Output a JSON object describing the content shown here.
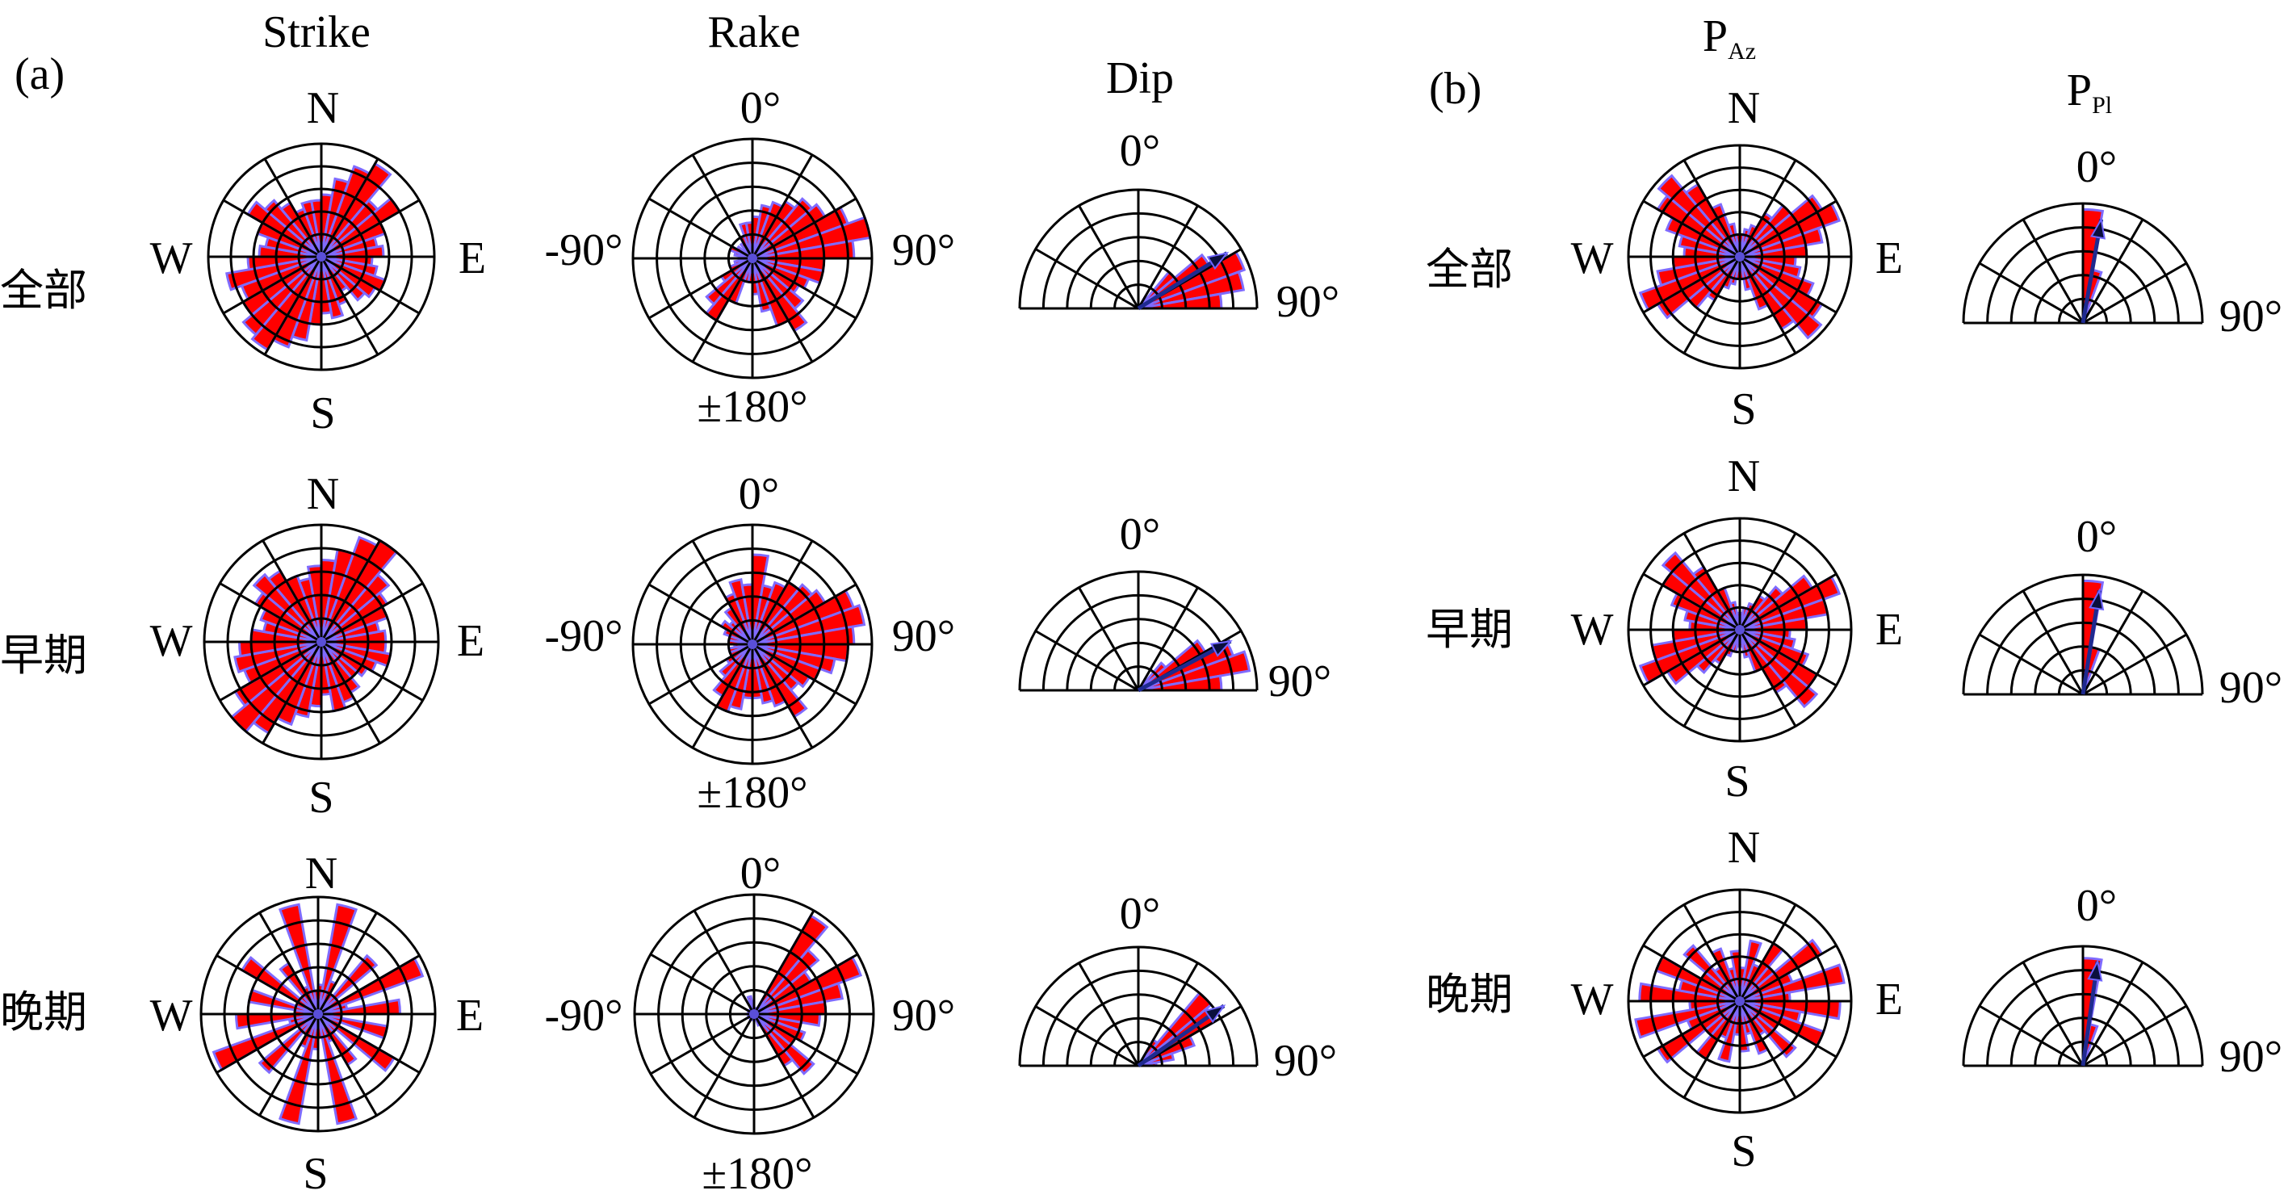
{
  "panel_labels": [
    "(a)",
    "(b)"
  ],
  "column_titles": {
    "strike": "Strike",
    "rake": "Rake",
    "dip": "Dip",
    "paz": {
      "main": "P",
      "sub": "Az"
    },
    "ppl": {
      "main": "P",
      "sub": "Pl"
    }
  },
  "row_labels": [
    "全部",
    "早期",
    "晚期"
  ],
  "axis_labels": {
    "compass": {
      "n": "N",
      "e": "E",
      "s": "S",
      "w": "W"
    },
    "rake": {
      "top": "0°",
      "left": "-90°",
      "right": "90°",
      "bottom": "±180°"
    },
    "dip": {
      "top": "0°",
      "right": "90°"
    },
    "ppl": {
      "top": "0°",
      "right": "90°"
    }
  },
  "colors": {
    "bar": "#ff0000",
    "bar_edge": "#7f6bff",
    "arrow": "#1f2a8f",
    "grid": "#000000"
  },
  "chart_data": [
    {
      "type": "rose",
      "panel": "a",
      "variable": "Strike",
      "period": "全部",
      "bin_width_deg": 10,
      "radial_max": 1,
      "directions": [
        0,
        10,
        20,
        30,
        40,
        50,
        60,
        70,
        80,
        90,
        100,
        110,
        120,
        130,
        140,
        150,
        160,
        170,
        180,
        190,
        200,
        210,
        220,
        230,
        240,
        250,
        260,
        270,
        280,
        290,
        300,
        310,
        320,
        330,
        340,
        350
      ],
      "values": [
        0.55,
        0.7,
        0.85,
        0.95,
        0.65,
        0.8,
        0.6,
        0.5,
        0.55,
        0.45,
        0.5,
        0.6,
        0.55,
        0.5,
        0.35,
        0.45,
        0.55,
        0.5,
        0.6,
        0.75,
        0.85,
        0.95,
        0.9,
        0.8,
        0.75,
        0.85,
        0.65,
        0.55,
        0.5,
        0.6,
        0.75,
        0.65,
        0.55,
        0.45,
        0.5,
        0.5
      ]
    },
    {
      "type": "rose",
      "panel": "a",
      "variable": "Strike",
      "period": "早期",
      "bin_width_deg": 10,
      "radial_max": 1,
      "directions": [
        0,
        10,
        20,
        30,
        40,
        50,
        60,
        70,
        80,
        90,
        100,
        110,
        120,
        130,
        140,
        150,
        160,
        170,
        180,
        190,
        200,
        210,
        220,
        230,
        240,
        250,
        260,
        270,
        280,
        290,
        300,
        310,
        320,
        330,
        340,
        350
      ],
      "values": [
        0.7,
        0.8,
        0.95,
        1.0,
        0.75,
        0.65,
        0.6,
        0.5,
        0.55,
        0.55,
        0.6,
        0.5,
        0.45,
        0.4,
        0.5,
        0.55,
        0.6,
        0.45,
        0.55,
        0.65,
        0.75,
        0.9,
        1.0,
        0.85,
        0.7,
        0.75,
        0.7,
        0.6,
        0.5,
        0.55,
        0.65,
        0.75,
        0.7,
        0.6,
        0.55,
        0.65
      ]
    },
    {
      "type": "rose",
      "panel": "a",
      "variable": "Strike",
      "period": "晚期",
      "bin_width_deg": 10,
      "radial_max": 1,
      "directions": [
        0,
        10,
        20,
        30,
        40,
        50,
        60,
        70,
        80,
        90,
        100,
        110,
        120,
        130,
        140,
        150,
        160,
        170,
        180,
        190,
        200,
        210,
        220,
        230,
        240,
        250,
        260,
        270,
        280,
        290,
        300,
        310,
        320,
        330,
        340,
        350
      ],
      "values": [
        0.25,
        0.95,
        0.3,
        0.2,
        0.65,
        0.2,
        0.95,
        0.25,
        0.7,
        0.2,
        0.6,
        0.2,
        0.75,
        0.2,
        0.5,
        0.25,
        0.95,
        0.2,
        0.3,
        0.95,
        0.3,
        0.2,
        0.65,
        0.2,
        0.95,
        0.25,
        0.7,
        0.2,
        0.6,
        0.2,
        0.75,
        0.2,
        0.5,
        0.25,
        0.95,
        0.2
      ]
    },
    {
      "type": "rose",
      "panel": "a",
      "variable": "Rake",
      "period": "全部",
      "bin_width_deg": 10,
      "radial_max": 1,
      "directions": [
        0,
        10,
        20,
        30,
        40,
        50,
        60,
        70,
        80,
        90,
        100,
        110,
        120,
        130,
        140,
        150,
        160,
        170,
        180,
        190,
        200,
        210,
        220,
        230,
        240,
        250,
        260,
        270,
        280,
        290,
        300,
        310,
        320,
        330,
        340,
        350
      ],
      "values": [
        0.35,
        0.45,
        0.5,
        0.55,
        0.65,
        0.7,
        0.85,
        1.0,
        0.85,
        0.6,
        0.6,
        0.5,
        0.45,
        0.55,
        0.7,
        0.6,
        0.45,
        0.3,
        0.2,
        0.2,
        0.4,
        0.6,
        0.5,
        0.3,
        0.2,
        0.15,
        0.1,
        0.1,
        0.15,
        0.2,
        0.15,
        0.1,
        0.15,
        0.2,
        0.3,
        0.3
      ]
    },
    {
      "type": "rose",
      "panel": "a",
      "variable": "Rake",
      "period": "早期",
      "bin_width_deg": 10,
      "radial_max": 1,
      "directions": [
        0,
        10,
        20,
        30,
        40,
        50,
        60,
        70,
        80,
        90,
        100,
        110,
        120,
        130,
        140,
        150,
        160,
        170,
        180,
        190,
        200,
        210,
        220,
        230,
        240,
        250,
        260,
        270,
        280,
        290,
        300,
        310,
        320,
        330,
        340,
        350
      ],
      "values": [
        0.75,
        0.5,
        0.55,
        0.6,
        0.65,
        0.7,
        0.9,
        0.95,
        0.85,
        0.8,
        0.7,
        0.6,
        0.55,
        0.5,
        0.7,
        0.55,
        0.5,
        0.45,
        0.45,
        0.55,
        0.6,
        0.5,
        0.35,
        0.25,
        0.2,
        0.2,
        0.15,
        0.2,
        0.2,
        0.25,
        0.3,
        0.25,
        0.35,
        0.45,
        0.55,
        0.5
      ]
    },
    {
      "type": "rose",
      "panel": "a",
      "variable": "Rake",
      "period": "晚期",
      "bin_width_deg": 10,
      "radial_max": 1,
      "directions": [
        0,
        10,
        20,
        30,
        40,
        50,
        60,
        70,
        80,
        90,
        100,
        110,
        120,
        130,
        140,
        150,
        160,
        170,
        180,
        190,
        200,
        210,
        220,
        230,
        240,
        250,
        260,
        270,
        280,
        290,
        300,
        310,
        320,
        330,
        340,
        350
      ],
      "values": [
        0.05,
        0.05,
        0.05,
        0.95,
        0.7,
        0.55,
        0.95,
        0.75,
        0.6,
        0.55,
        0.4,
        0.45,
        0.4,
        0.65,
        0.5,
        0.1,
        0.05,
        0.05,
        0.05,
        0.05,
        0.05,
        0.05,
        0.05,
        0.05,
        0.05,
        0.05,
        0.05,
        0.05,
        0.05,
        0.05,
        0.05,
        0.05,
        0.05,
        0.05,
        0.15,
        0.1
      ]
    },
    {
      "type": "half-rose",
      "panel": "a",
      "variable": "Dip",
      "period": "全部",
      "bin_width_deg": 10,
      "radial_max": 1,
      "directions": [
        0,
        10,
        20,
        30,
        40,
        50,
        60,
        70,
        80
      ],
      "values": [
        0,
        0,
        0,
        0.1,
        0.4,
        0.7,
        0.95,
        0.9,
        0.7
      ],
      "mean_deg": 58
    },
    {
      "type": "half-rose",
      "panel": "a",
      "variable": "Dip",
      "period": "早期",
      "bin_width_deg": 10,
      "radial_max": 1,
      "directions": [
        0,
        10,
        20,
        30,
        40,
        50,
        60,
        70,
        80
      ],
      "values": [
        0,
        0,
        0,
        0,
        0.3,
        0.65,
        0.85,
        0.95,
        0.7
      ],
      "mean_deg": 62
    },
    {
      "type": "half-rose",
      "panel": "a",
      "variable": "Dip",
      "period": "晚期",
      "bin_width_deg": 10,
      "radial_max": 1,
      "directions": [
        0,
        10,
        20,
        30,
        40,
        50,
        60,
        70,
        80
      ],
      "values": [
        0,
        0,
        0,
        0.25,
        0.8,
        0.75,
        0.5,
        0.3,
        0.15
      ],
      "mean_deg": 55
    },
    {
      "type": "rose",
      "panel": "b",
      "variable": "P_Az",
      "period": "全部",
      "bin_width_deg": 10,
      "radial_max": 1,
      "directions": [
        0,
        10,
        20,
        30,
        40,
        50,
        60,
        70,
        80,
        90,
        100,
        110,
        120,
        130,
        140,
        150,
        160,
        170,
        180,
        190,
        200,
        210,
        220,
        230,
        240,
        250,
        260,
        270,
        280,
        290,
        300,
        310,
        320,
        330,
        340,
        350
      ],
      "values": [
        0.2,
        0.25,
        0.3,
        0.45,
        0.6,
        0.85,
        0.95,
        0.75,
        0.6,
        0.5,
        0.55,
        0.7,
        0.85,
        0.95,
        0.75,
        0.5,
        0.3,
        0.2,
        0.2,
        0.25,
        0.3,
        0.45,
        0.6,
        0.85,
        0.95,
        0.75,
        0.6,
        0.5,
        0.55,
        0.7,
        0.85,
        0.95,
        0.75,
        0.5,
        0.3,
        0.2
      ]
    },
    {
      "type": "rose",
      "panel": "b",
      "variable": "P_Az",
      "period": "早期",
      "bin_width_deg": 10,
      "radial_max": 1,
      "directions": [
        0,
        10,
        20,
        30,
        40,
        50,
        60,
        70,
        80,
        90,
        100,
        110,
        120,
        130,
        140,
        150,
        160,
        170,
        180,
        190,
        200,
        210,
        220,
        230,
        240,
        250,
        260,
        270,
        280,
        290,
        300,
        310,
        320,
        330,
        340,
        350
      ],
      "values": [
        0.15,
        0.2,
        0.25,
        0.35,
        0.5,
        0.75,
        0.95,
        0.8,
        0.6,
        0.45,
        0.5,
        0.65,
        0.8,
        0.9,
        0.65,
        0.4,
        0.25,
        0.15,
        0.15,
        0.2,
        0.25,
        0.35,
        0.5,
        0.75,
        0.95,
        0.8,
        0.6,
        0.45,
        0.5,
        0.65,
        0.8,
        0.9,
        0.65,
        0.4,
        0.25,
        0.15
      ]
    },
    {
      "type": "rose",
      "panel": "b",
      "variable": "P_Az",
      "period": "晚期",
      "bin_width_deg": 10,
      "radial_max": 1,
      "directions": [
        0,
        10,
        20,
        30,
        40,
        50,
        60,
        70,
        80,
        90,
        100,
        110,
        120,
        130,
        140,
        150,
        160,
        170,
        180,
        190,
        200,
        210,
        220,
        230,
        240,
        250,
        260,
        270,
        280,
        290,
        300,
        310,
        320,
        330,
        340,
        350
      ],
      "values": [
        0.3,
        0.55,
        0.35,
        0.6,
        0.4,
        0.85,
        0.5,
        0.95,
        0.45,
        0.9,
        0.55,
        0.8,
        0.4,
        0.65,
        0.35,
        0.5,
        0.3,
        0.45,
        0.3,
        0.55,
        0.35,
        0.6,
        0.4,
        0.85,
        0.5,
        0.95,
        0.45,
        0.9,
        0.55,
        0.8,
        0.4,
        0.65,
        0.35,
        0.5,
        0.3,
        0.45
      ]
    },
    {
      "type": "half-rose",
      "panel": "b",
      "variable": "P_Pl",
      "period": "全部",
      "bin_width_deg": 10,
      "radial_max": 1,
      "directions": [
        0,
        10,
        20,
        30,
        40,
        50,
        60,
        70,
        80
      ],
      "values": [
        0.95,
        0.45,
        0.1,
        0,
        0,
        0,
        0,
        0,
        0
      ],
      "mean_deg": 10
    },
    {
      "type": "half-rose",
      "panel": "b",
      "variable": "P_Pl",
      "period": "早期",
      "bin_width_deg": 10,
      "radial_max": 1,
      "directions": [
        0,
        10,
        20,
        30,
        40,
        50,
        60,
        70,
        80
      ],
      "values": [
        0.95,
        0.4,
        0.1,
        0,
        0,
        0,
        0,
        0,
        0
      ],
      "mean_deg": 9
    },
    {
      "type": "half-rose",
      "panel": "b",
      "variable": "P_Pl",
      "period": "晚期",
      "bin_width_deg": 10,
      "radial_max": 1,
      "directions": [
        0,
        10,
        20,
        30,
        40,
        50,
        60,
        70,
        80
      ],
      "values": [
        0.9,
        0.35,
        0.05,
        0,
        0,
        0,
        0,
        0,
        0
      ],
      "mean_deg": 8
    }
  ]
}
